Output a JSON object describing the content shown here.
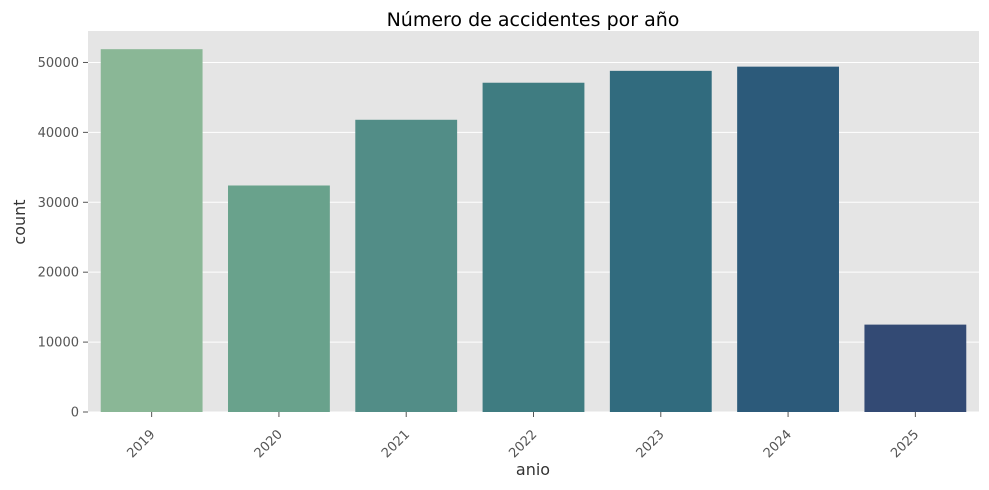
{
  "chart_data": {
    "type": "bar",
    "title": "Número de accidentes por año",
    "xlabel": "anio",
    "ylabel": "count",
    "categories": [
      "2019",
      "2020",
      "2021",
      "2022",
      "2023",
      "2024",
      "2025"
    ],
    "values": [
      51900,
      32400,
      41800,
      47100,
      48800,
      49400,
      12500
    ],
    "colors": [
      "#8ab796",
      "#69a28c",
      "#528d87",
      "#3f7c81",
      "#316b7e",
      "#2c5a7a",
      "#334a74"
    ],
    "ylim": [
      0,
      54500
    ],
    "yticks": [
      0,
      10000,
      20000,
      30000,
      40000,
      50000
    ],
    "grid": true,
    "background_color": "#e5e5e5"
  }
}
